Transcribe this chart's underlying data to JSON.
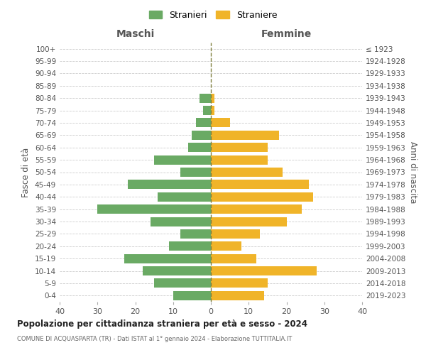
{
  "age_groups": [
    "100+",
    "95-99",
    "90-94",
    "85-89",
    "80-84",
    "75-79",
    "70-74",
    "65-69",
    "60-64",
    "55-59",
    "50-54",
    "45-49",
    "40-44",
    "35-39",
    "30-34",
    "25-29",
    "20-24",
    "15-19",
    "10-14",
    "5-9",
    "0-4"
  ],
  "birth_years": [
    "≤ 1923",
    "1924-1928",
    "1929-1933",
    "1934-1938",
    "1939-1943",
    "1944-1948",
    "1949-1953",
    "1954-1958",
    "1959-1963",
    "1964-1968",
    "1969-1973",
    "1974-1978",
    "1979-1983",
    "1984-1988",
    "1989-1993",
    "1994-1998",
    "1999-2003",
    "2004-2008",
    "2009-2013",
    "2014-2018",
    "2019-2023"
  ],
  "males": [
    0,
    0,
    0,
    0,
    3,
    2,
    4,
    5,
    6,
    15,
    8,
    22,
    14,
    30,
    16,
    8,
    11,
    23,
    18,
    15,
    10
  ],
  "females": [
    0,
    0,
    0,
    0,
    1,
    1,
    5,
    18,
    15,
    15,
    19,
    26,
    27,
    24,
    20,
    13,
    8,
    12,
    28,
    15,
    14
  ],
  "male_color": "#6aaa64",
  "female_color": "#f0b429",
  "title": "Popolazione per cittadinanza straniera per età e sesso - 2024",
  "subtitle": "COMUNE DI ACQUASPARTA (TR) - Dati ISTAT al 1° gennaio 2024 - Elaborazione TUTTITALIA.IT",
  "legend_male": "Stranieri",
  "legend_female": "Straniere",
  "xlabel_left": "Maschi",
  "xlabel_right": "Femmine",
  "ylabel_left": "Fasce di età",
  "ylabel_right": "Anni di nascita",
  "xlim": 40,
  "background_color": "#ffffff",
  "grid_color": "#cccccc"
}
